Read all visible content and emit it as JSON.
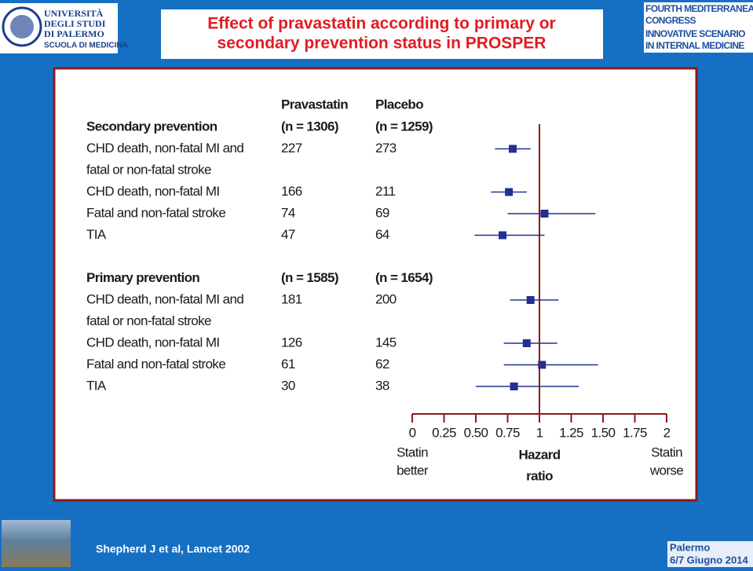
{
  "header": {
    "logo_left": [
      "UNIVERSITÀ",
      "DEGLI STUDI",
      "DI PALERMO",
      "SCUOLA DI MEDICINA"
    ],
    "title": [
      "Effect of pravastatin according to primary or",
      "secondary prevention status in PROSPER"
    ],
    "logo_right": [
      "FOURTH MEDITERRANEAN",
      "CONGRESS",
      "INNOVATIVE SCENARIO",
      "IN INTERNAL MEDICINE"
    ]
  },
  "chart_data": {
    "type": "forest",
    "columns": [
      "Pravastatin",
      "Placebo"
    ],
    "groups": [
      {
        "name": "Secondary prevention",
        "n": [
          "(n = 1306)",
          "(n = 1259)"
        ],
        "rows": [
          {
            "label": [
              "CHD death, non-fatal MI and",
              "fatal or non-fatal stroke"
            ],
            "counts": [
              227,
              273
            ],
            "estimate": 0.79,
            "ci": [
              0.65,
              0.93
            ]
          },
          {
            "label": [
              "CHD death, non-fatal MI"
            ],
            "counts": [
              166,
              211
            ],
            "estimate": 0.76,
            "ci": [
              0.62,
              0.9
            ]
          },
          {
            "label": [
              "Fatal and non-fatal stroke"
            ],
            "counts": [
              74,
              69
            ],
            "estimate": 1.04,
            "ci": [
              0.75,
              1.44
            ]
          },
          {
            "label": [
              "TIA"
            ],
            "counts": [
              47,
              64
            ],
            "estimate": 0.71,
            "ci": [
              0.49,
              1.04
            ]
          }
        ]
      },
      {
        "name": "Primary prevention",
        "n": [
          "(n = 1585)",
          "(n = 1654)"
        ],
        "rows": [
          {
            "label": [
              "CHD death, non-fatal MI and",
              "fatal or non-fatal stroke"
            ],
            "counts": [
              181,
              200
            ],
            "estimate": 0.93,
            "ci": [
              0.77,
              1.15
            ]
          },
          {
            "label": [
              "CHD death, non-fatal MI"
            ],
            "counts": [
              126,
              145
            ],
            "estimate": 0.9,
            "ci": [
              0.72,
              1.14
            ]
          },
          {
            "label": [
              "Fatal and non-fatal stroke"
            ],
            "counts": [
              61,
              62
            ],
            "estimate": 1.02,
            "ci": [
              0.72,
              1.46
            ]
          },
          {
            "label": [
              "TIA"
            ],
            "counts": [
              30,
              38
            ],
            "estimate": 0.8,
            "ci": [
              0.5,
              1.31
            ]
          }
        ]
      }
    ],
    "xlim": [
      0,
      2
    ],
    "xticks": [
      0,
      0.25,
      {
        "value": 0.5,
        "label": "0.50"
      },
      0.75,
      1,
      1.25,
      {
        "value": 1.5,
        "label": "1.50"
      },
      1.75,
      2
    ],
    "reference": 1,
    "xlabel": [
      "Hazard",
      "ratio"
    ],
    "left_note": [
      "Statin",
      "better"
    ],
    "right_note": [
      "Statin",
      "worse"
    ],
    "color": "#22318f",
    "axis_color": "#8b1a1a"
  },
  "footer": {
    "citation": "Shepherd J et al,  Lancet 2002",
    "badge": [
      "Palermo",
      "6/7 Giugno 2014"
    ]
  }
}
